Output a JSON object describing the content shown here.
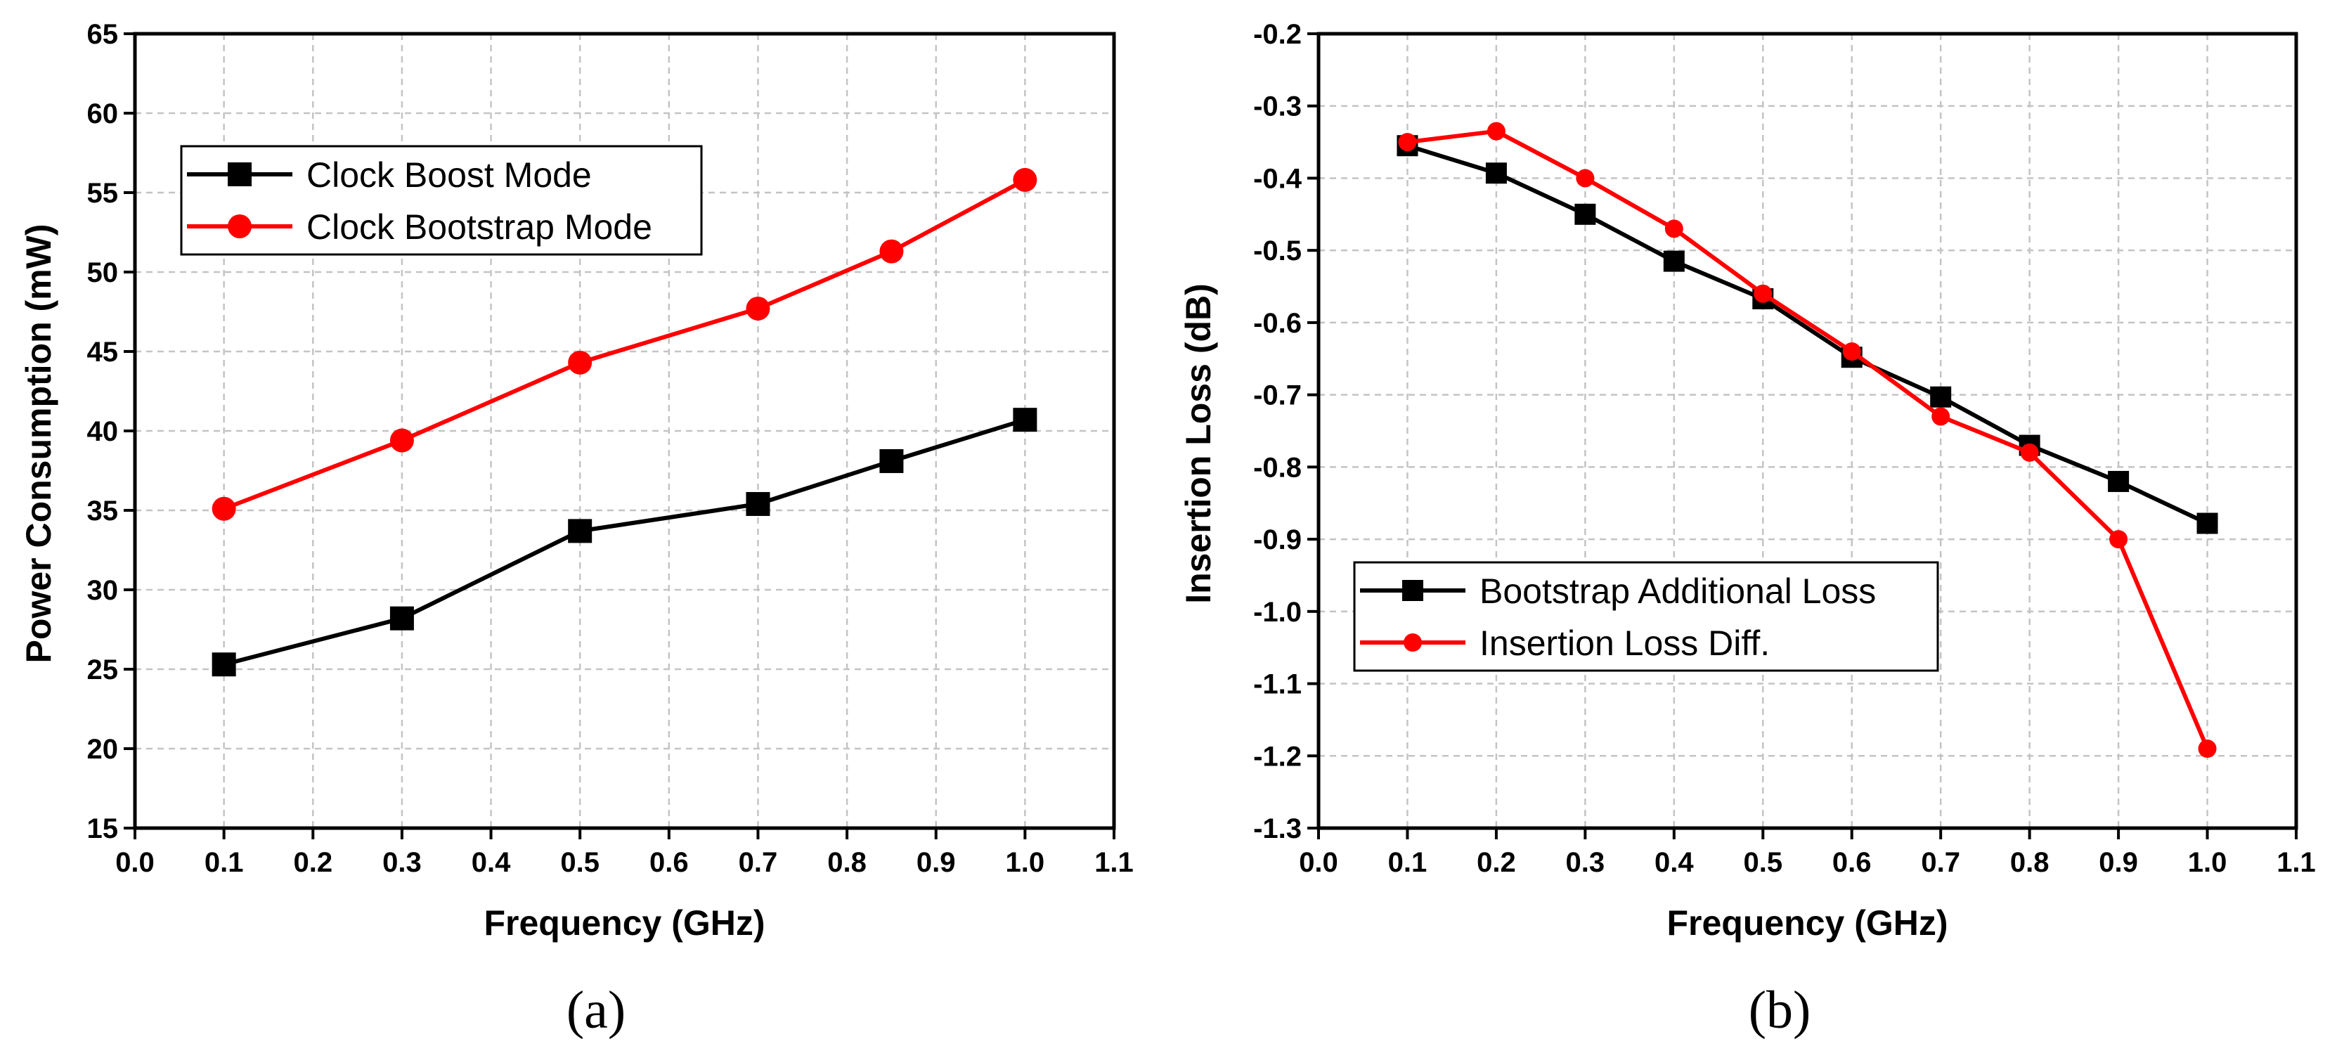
{
  "chart_data": [
    {
      "type": "line",
      "caption": "(a)",
      "xlabel": "Frequency (GHz)",
      "ylabel": "Power Consumption (mW)",
      "xlim": [
        0.0,
        1.1
      ],
      "ylim": [
        15,
        65
      ],
      "xticks": [
        "0.0",
        "0.1",
        "0.2",
        "0.3",
        "0.4",
        "0.5",
        "0.6",
        "0.7",
        "0.8",
        "0.9",
        "1.0",
        "1.1"
      ],
      "yticks": [
        "15",
        "20",
        "25",
        "30",
        "35",
        "40",
        "45",
        "50",
        "55",
        "60",
        "65"
      ],
      "grid": true,
      "legend_position": "top-left",
      "series": [
        {
          "name": "Clock Boost Mode",
          "color": "#000000",
          "marker": "square",
          "x": [
            0.1,
            0.3,
            0.5,
            0.7,
            0.85,
            1.0
          ],
          "y": [
            25.3,
            28.2,
            33.7,
            35.4,
            38.1,
            40.7
          ]
        },
        {
          "name": "Clock Bootstrap Mode",
          "color": "#ff0000",
          "marker": "circle",
          "x": [
            0.1,
            0.3,
            0.5,
            0.7,
            0.85,
            1.0
          ],
          "y": [
            35.1,
            39.4,
            44.3,
            47.7,
            51.3,
            55.8
          ]
        }
      ]
    },
    {
      "type": "line",
      "caption": "(b)",
      "xlabel": "Frequency (GHz)",
      "ylabel": "Insertion Loss (dB)",
      "xlim": [
        0.0,
        1.1
      ],
      "ylim": [
        -1.3,
        -0.2
      ],
      "xticks": [
        "0.0",
        "0.1",
        "0.2",
        "0.3",
        "0.4",
        "0.5",
        "0.6",
        "0.7",
        "0.8",
        "0.9",
        "1.0",
        "1.1"
      ],
      "yticks": [
        "-1.3",
        "-1.2",
        "-1.1",
        "-1.0",
        "-0.9",
        "-0.8",
        "-0.7",
        "-0.6",
        "-0.5",
        "-0.4",
        "-0.3",
        "-0.2"
      ],
      "grid": true,
      "legend_position": "center-left",
      "series": [
        {
          "name": "Bootstrap Additional Loss",
          "color": "#000000",
          "marker": "square",
          "x": [
            0.1,
            0.2,
            0.3,
            0.4,
            0.5,
            0.6,
            0.7,
            0.8,
            0.9,
            1.0
          ],
          "y": [
            -0.355,
            -0.393,
            -0.45,
            -0.515,
            -0.567,
            -0.648,
            -0.703,
            -0.77,
            -0.82,
            -0.878
          ]
        },
        {
          "name": "Insertion Loss Diff.",
          "color": "#ff0000",
          "marker": "circle",
          "x": [
            0.1,
            0.2,
            0.3,
            0.4,
            0.5,
            0.6,
            0.7,
            0.8,
            0.9,
            1.0
          ],
          "y": [
            -0.35,
            -0.335,
            -0.4,
            -0.47,
            -0.56,
            -0.64,
            -0.73,
            -0.78,
            -0.9,
            -1.19
          ]
        }
      ]
    }
  ]
}
